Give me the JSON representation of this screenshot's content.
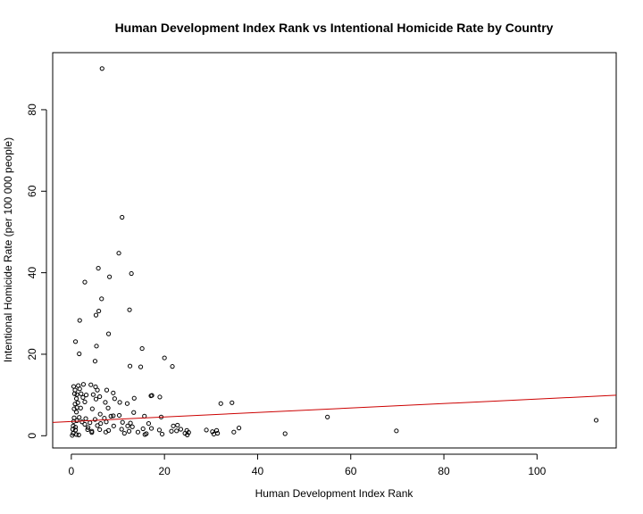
{
  "chart_data": {
    "type": "scatter",
    "title": "Human Development Index Rank vs Intentional Homicide Rate by Country",
    "xlabel": "Human Development Index Rank",
    "ylabel": "Intentional Homicide Rate (per 100 000 people)",
    "xlim": [
      -4,
      117
    ],
    "ylim": [
      -3,
      94
    ],
    "x_ticks": [
      0,
      20,
      40,
      60,
      80,
      100
    ],
    "y_ticks": [
      0,
      20,
      40,
      60,
      80
    ],
    "grid": false,
    "colors": {
      "points": "#000000",
      "trend_line": "#cc0000"
    },
    "trend_line": {
      "intercept": 3.5,
      "slope": 0.055
    },
    "points": [
      [
        6.6,
        90.1
      ],
      [
        10.9,
        53.6
      ],
      [
        10.2,
        44.8
      ],
      [
        5.8,
        41.1
      ],
      [
        12.9,
        39.8
      ],
      [
        8.2,
        39.0
      ],
      [
        2.9,
        37.7
      ],
      [
        6.5,
        33.6
      ],
      [
        12.5,
        30.9
      ],
      [
        5.9,
        30.6
      ],
      [
        5.3,
        29.6
      ],
      [
        1.8,
        28.3
      ],
      [
        8.0,
        25.0
      ],
      [
        0.9,
        23.1
      ],
      [
        5.4,
        22.0
      ],
      [
        15.2,
        21.4
      ],
      [
        1.7,
        20.1
      ],
      [
        20.0,
        19.1
      ],
      [
        5.1,
        18.3
      ],
      [
        12.6,
        17.1
      ],
      [
        14.9,
        16.9
      ],
      [
        21.7,
        17.0
      ],
      [
        0.5,
        12.1
      ],
      [
        1.5,
        12.3
      ],
      [
        2.6,
        12.6
      ],
      [
        4.2,
        12.5
      ],
      [
        5.2,
        12.0
      ],
      [
        0.8,
        11.2
      ],
      [
        1.8,
        11.5
      ],
      [
        5.6,
        11.2
      ],
      [
        7.6,
        11.2
      ],
      [
        0.7,
        10.3
      ],
      [
        1.2,
        10.1
      ],
      [
        2.1,
        10.3
      ],
      [
        3.2,
        10.0
      ],
      [
        4.7,
        10.1
      ],
      [
        9.0,
        10.5
      ],
      [
        17.1,
        9.8
      ],
      [
        17.3,
        9.9
      ],
      [
        19.0,
        9.5
      ],
      [
        1.1,
        9.1
      ],
      [
        2.5,
        9.4
      ],
      [
        5.3,
        9.0
      ],
      [
        6.1,
        9.6
      ],
      [
        9.3,
        9.1
      ],
      [
        13.5,
        9.2
      ],
      [
        0.8,
        7.8
      ],
      [
        1.4,
        8.1
      ],
      [
        2.9,
        8.3
      ],
      [
        7.3,
        8.2
      ],
      [
        10.4,
        8.2
      ],
      [
        12.0,
        7.9
      ],
      [
        32.1,
        7.9
      ],
      [
        34.5,
        8.1
      ],
      [
        0.6,
        6.6
      ],
      [
        1.2,
        6.9
      ],
      [
        2.0,
        6.8
      ],
      [
        4.5,
        6.6
      ],
      [
        7.9,
        6.8
      ],
      [
        1.1,
        5.8
      ],
      [
        6.2,
        5.3
      ],
      [
        9.0,
        4.9
      ],
      [
        10.3,
        5.0
      ],
      [
        13.4,
        5.7
      ],
      [
        15.7,
        4.8
      ],
      [
        19.3,
        4.6
      ],
      [
        55.0,
        4.6
      ],
      [
        0.6,
        4.4
      ],
      [
        1.7,
        4.5
      ],
      [
        3.1,
        4.2
      ],
      [
        5.1,
        4.0
      ],
      [
        7.1,
        4.3
      ],
      [
        8.5,
        4.8
      ],
      [
        112.7,
        3.8
      ],
      [
        0.5,
        3.5
      ],
      [
        1.2,
        3.7
      ],
      [
        2.3,
        3.4
      ],
      [
        4.0,
        3.2
      ],
      [
        6.3,
        3.0
      ],
      [
        7.5,
        3.4
      ],
      [
        11.0,
        3.3
      ],
      [
        12.7,
        3.1
      ],
      [
        16.6,
        3.0
      ],
      [
        0.4,
        2.4
      ],
      [
        0.9,
        2.1
      ],
      [
        2.9,
        2.8
      ],
      [
        3.6,
        2.0
      ],
      [
        5.6,
        2.5
      ],
      [
        9.1,
        2.4
      ],
      [
        12.1,
        2.4
      ],
      [
        13.1,
        2.2
      ],
      [
        21.9,
        2.4
      ],
      [
        22.8,
        2.6
      ],
      [
        0.3,
        1.6
      ],
      [
        0.9,
        1.4
      ],
      [
        3.5,
        1.5
      ],
      [
        4.4,
        1.1
      ],
      [
        6.1,
        1.5
      ],
      [
        8.0,
        1.3
      ],
      [
        10.8,
        1.6
      ],
      [
        12.4,
        1.1
      ],
      [
        15.4,
        1.7
      ],
      [
        17.2,
        1.8
      ],
      [
        18.9,
        1.4
      ],
      [
        21.5,
        1.1
      ],
      [
        22.6,
        1.2
      ],
      [
        23.5,
        1.6
      ],
      [
        24.8,
        1.3
      ],
      [
        29.0,
        1.4
      ],
      [
        30.3,
        1.0
      ],
      [
        31.2,
        1.3
      ],
      [
        34.9,
        0.9
      ],
      [
        36.0,
        1.9
      ],
      [
        69.8,
        1.2
      ],
      [
        0.4,
        0.6
      ],
      [
        1.1,
        0.3
      ],
      [
        4.4,
        0.8
      ],
      [
        7.4,
        0.9
      ],
      [
        11.4,
        0.6
      ],
      [
        14.3,
        0.9
      ],
      [
        16.1,
        0.5
      ],
      [
        19.5,
        0.4
      ],
      [
        24.4,
        0.6
      ],
      [
        25.2,
        0.8
      ],
      [
        30.6,
        0.4
      ],
      [
        31.4,
        0.6
      ],
      [
        45.9,
        0.5
      ],
      [
        0.2,
        0.1
      ],
      [
        1.6,
        0.2
      ],
      [
        15.8,
        0.3
      ],
      [
        24.9,
        0.2
      ]
    ]
  }
}
